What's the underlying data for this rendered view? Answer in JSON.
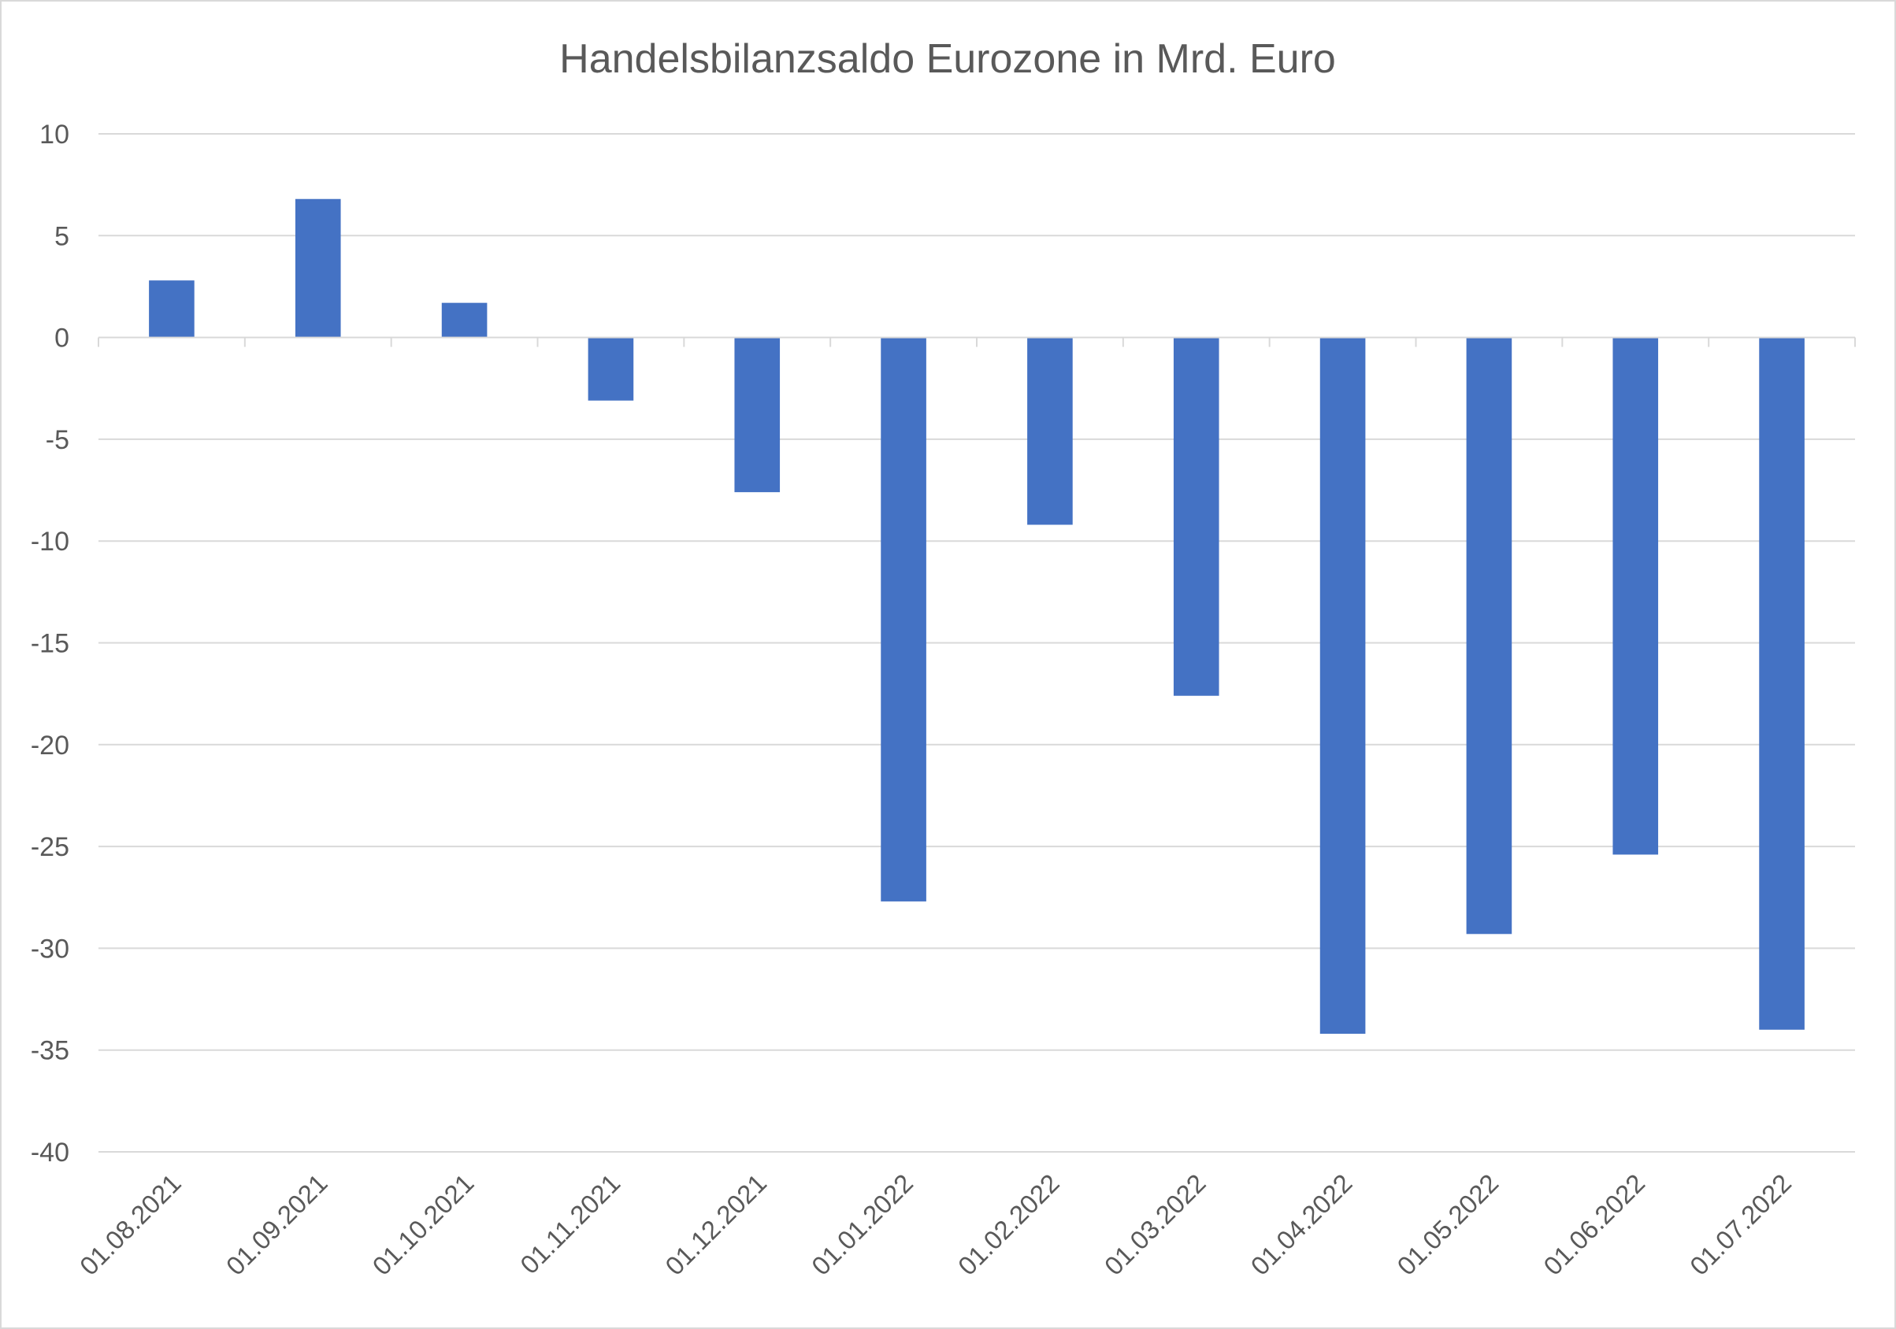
{
  "chart_data": {
    "type": "bar",
    "title": "Handelsbilanzsaldo Eurozone in Mrd. Euro",
    "xlabel": "",
    "ylabel": "",
    "categories": [
      "01.08.2021",
      "01.09.2021",
      "01.10.2021",
      "01.11.2021",
      "01.12.2021",
      "01.01.2022",
      "01.02.2022",
      "01.03.2022",
      "01.04.2022",
      "01.05.2022",
      "01.06.2022",
      "01.07.2022"
    ],
    "values": [
      2.8,
      6.8,
      1.7,
      -3.1,
      -7.6,
      -27.7,
      -9.2,
      -17.6,
      -34.2,
      -29.3,
      -25.4,
      -34.0
    ],
    "ylim": [
      -40,
      10
    ],
    "yticks": [
      10,
      5,
      0,
      -5,
      -10,
      -15,
      -20,
      -25,
      -30,
      -35,
      -40
    ],
    "grid": true,
    "legend": "none",
    "colors": {
      "bar": "#4472C4",
      "grid": "#D9D9D9",
      "text": "#595959",
      "border": "#D9D9D9"
    }
  }
}
